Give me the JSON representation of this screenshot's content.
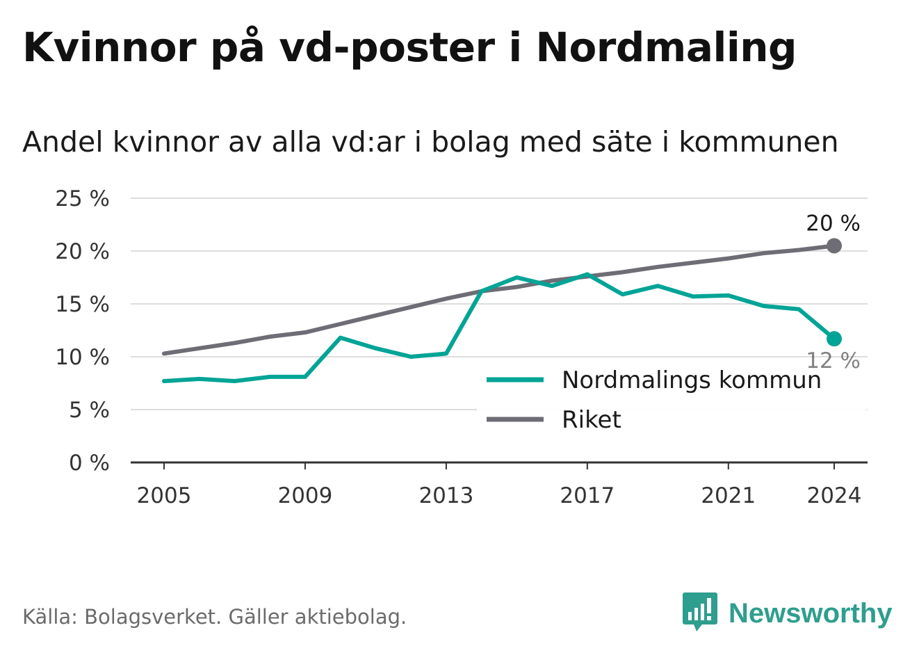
{
  "header": {
    "title": "Kvinnor på vd-poster i Nordmaling",
    "subtitle": "Andel kvinnor av alla vd:ar i bolag med säte i kommunen"
  },
  "footer": {
    "source": "Källa: Bolagsverket. Gäller aktiebolag.",
    "brand": "Newsworthy",
    "brand_icon": "bar-chart-speech-bubble-icon"
  },
  "colors": {
    "nordmaling": "#00a496",
    "riket": "#6e6d75",
    "grid": "#dddddd",
    "axis": "#333333",
    "brand": "#2e9e8e"
  },
  "chart_data": {
    "type": "line",
    "title": "Kvinnor på vd-poster i Nordmaling",
    "subtitle": "Andel kvinnor av alla vd:ar i bolag med säte i kommunen",
    "x": [
      2005,
      2006,
      2007,
      2008,
      2009,
      2010,
      2011,
      2012,
      2013,
      2014,
      2015,
      2016,
      2017,
      2018,
      2019,
      2020,
      2021,
      2022,
      2023,
      2024
    ],
    "x_ticks": [
      2005,
      2009,
      2013,
      2017,
      2021,
      2024
    ],
    "x_tick_labels": [
      "2005",
      "2009",
      "2013",
      "2017",
      "2021",
      "2024"
    ],
    "y_ticks": [
      0,
      5,
      10,
      15,
      20,
      25
    ],
    "y_tick_labels": [
      "0 %",
      "5 %",
      "10 %",
      "15 %",
      "20 %",
      "25 %"
    ],
    "ylim": [
      0,
      25
    ],
    "grid": true,
    "legend_position": "bottom-right",
    "series": [
      {
        "name": "Nordmalings kommun",
        "color": "#00a496",
        "values": [
          7.7,
          7.9,
          7.7,
          8.1,
          8.1,
          11.8,
          10.8,
          10.0,
          10.3,
          16.2,
          17.5,
          16.7,
          17.8,
          15.9,
          16.7,
          15.7,
          15.8,
          14.8,
          14.5,
          11.7
        ],
        "end_label": "12 %"
      },
      {
        "name": "Riket",
        "color": "#6e6d75",
        "values": [
          10.3,
          10.8,
          11.3,
          11.9,
          12.3,
          13.1,
          13.9,
          14.7,
          15.5,
          16.2,
          16.6,
          17.2,
          17.6,
          18.0,
          18.5,
          18.9,
          19.3,
          19.8,
          20.1,
          20.5
        ],
        "end_label": "20 %"
      }
    ]
  }
}
